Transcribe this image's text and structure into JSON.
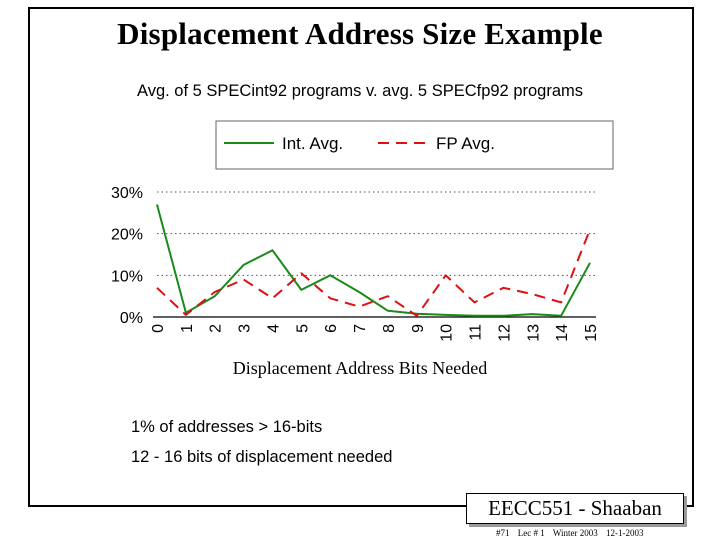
{
  "slide": {
    "title": "Displacement Address Size Example",
    "subtitle": "Avg. of 5 SPECint92 programs v. avg. 5 SPECfp92 programs",
    "note1": "1% of addresses > 16-bits",
    "note2": "12 - 16 bits of displacement needed",
    "badge": "EECC551 - Shaaban",
    "footer": {
      "slide_no": "#71",
      "lec": "Lec # 1",
      "term": "Winter 2003",
      "date": "12-1-2003"
    }
  },
  "chart_data": {
    "type": "line",
    "title": "",
    "xlabel": "Displacement Address Bits Needed",
    "ylabel": "",
    "x": [
      0,
      1,
      2,
      3,
      4,
      5,
      6,
      7,
      8,
      9,
      10,
      11,
      12,
      13,
      14,
      15
    ],
    "x_tick_labels": [
      "0",
      "1",
      "2",
      "3",
      "4",
      "5",
      "6",
      "7",
      "8",
      "9",
      "10",
      "11",
      "12",
      "13",
      "14",
      "15"
    ],
    "y_tick_labels": [
      "0%",
      "10%",
      "20%",
      "30%"
    ],
    "ylim": [
      0,
      30
    ],
    "grid": "horizontal dotted",
    "legend_position": "top",
    "series": [
      {
        "name": "Int. Avg.",
        "color": "#1a8a1a",
        "style": "solid",
        "values": [
          27,
          1,
          5,
          12.5,
          16,
          6.5,
          10,
          6,
          1.5,
          0.8,
          0.5,
          0.3,
          0.3,
          0.7,
          0.3,
          13
        ]
      },
      {
        "name": "FP Avg.",
        "color": "#dd1111",
        "style": "dashed",
        "values": [
          7,
          0.5,
          6,
          9,
          4.5,
          10.5,
          4.5,
          2.5,
          5,
          0.3,
          10,
          3.5,
          7,
          5.5,
          3.5,
          21
        ]
      }
    ]
  }
}
